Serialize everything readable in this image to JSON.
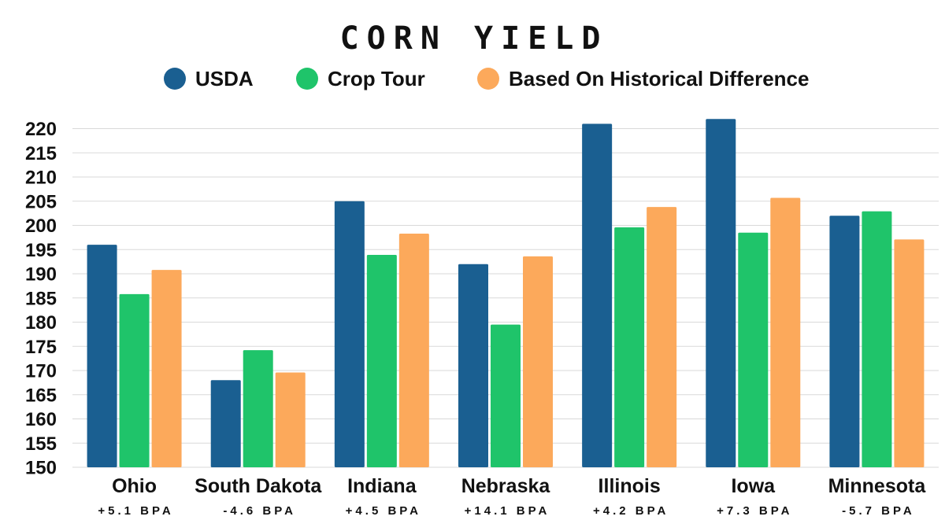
{
  "chart_data": {
    "type": "bar",
    "title": "CORN YIELD",
    "xlabel": "",
    "ylabel": "",
    "ylim": [
      150,
      222
    ],
    "yticks": [
      150,
      155,
      160,
      165,
      170,
      175,
      180,
      185,
      190,
      195,
      200,
      205,
      210,
      215,
      220
    ],
    "grid": true,
    "legend_position": "top",
    "categories": [
      "Ohio",
      "South Dakota",
      "Indiana",
      "Nebraska",
      "Illinois",
      "Iowa",
      "Minnesota"
    ],
    "category_notes": [
      "+5.1 BPA",
      "-4.6 BPA",
      "+4.5 BPA",
      "+14.1 BPA",
      "+4.2 BPA",
      "+7.3 BPA",
      "-5.7 BPA"
    ],
    "series": [
      {
        "name": "USDA",
        "color": "#1a5f91",
        "values": [
          196,
          168,
          205,
          192,
          221,
          222,
          202
        ]
      },
      {
        "name": "Crop Tour",
        "color": "#1fc46a",
        "values": [
          185.8,
          174.2,
          193.9,
          179.5,
          199.6,
          198.5,
          202.9
        ]
      },
      {
        "name": "Based On Historical Difference",
        "color": "#fca95b",
        "values": [
          190.8,
          169.6,
          198.3,
          193.6,
          203.8,
          205.7,
          197.1
        ]
      }
    ]
  }
}
